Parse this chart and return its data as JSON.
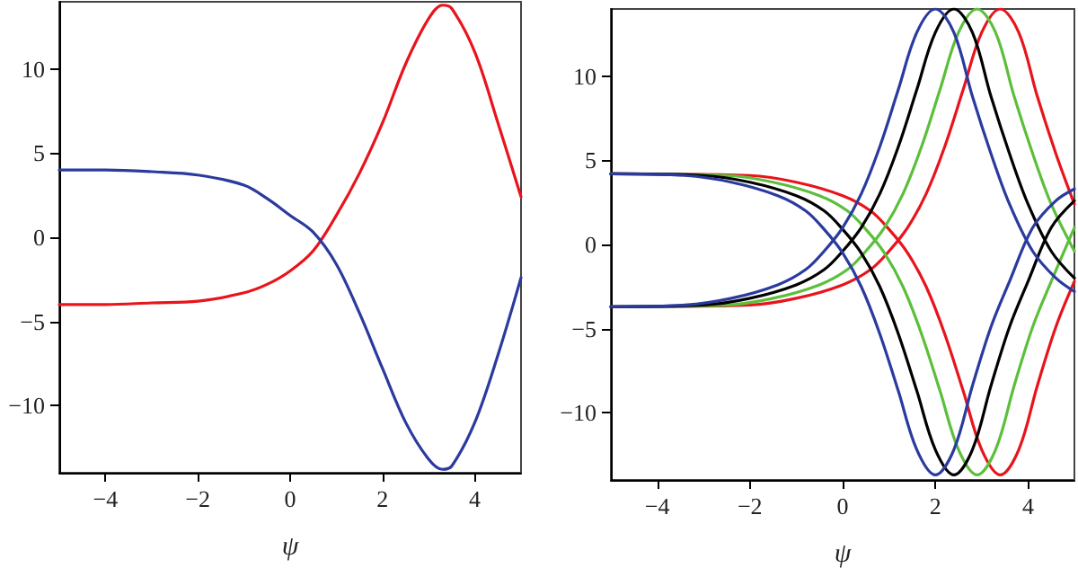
{
  "chart_data": [
    {
      "type": "line",
      "xlabel": "ψ",
      "xlim": [
        -5,
        5
      ],
      "xticks": [
        -4,
        -2,
        0,
        2,
        4
      ],
      "ylim": [
        -14,
        14
      ],
      "yticks": [
        -10,
        -5,
        0,
        5,
        10
      ],
      "grid": false,
      "marker": "none",
      "line_style": "solid",
      "series": [
        {
          "color": "#e8141c",
          "x": [
            -5,
            -4,
            -3,
            -2,
            -1,
            -0.5,
            0,
            0.5,
            1,
            1.5,
            2,
            2.5,
            3,
            3.3,
            3.5,
            4,
            4.5,
            5
          ],
          "values": [
            -4,
            -4,
            -3.9,
            -3.8,
            -3.3,
            -2.8,
            -2.0,
            -0.8,
            1.3,
            3.8,
            6.8,
            10.3,
            13.0,
            13.8,
            13.6,
            11.0,
            6.8,
            2.4
          ]
        },
        {
          "color": "#2a3a9e",
          "x": [
            -5,
            -4,
            -3,
            -2,
            -1,
            -0.5,
            0,
            0.5,
            1,
            1.5,
            2,
            2.5,
            3,
            3.3,
            3.5,
            4,
            4.5,
            5
          ],
          "values": [
            4,
            4,
            3.9,
            3.7,
            3.1,
            2.3,
            1.3,
            0.3,
            -1.6,
            -4.5,
            -7.8,
            -11,
            -13.2,
            -13.8,
            -13.6,
            -11,
            -7,
            -2.4
          ]
        }
      ]
    },
    {
      "type": "line",
      "xlabel": "ψ",
      "xlim": [
        -5,
        5
      ],
      "xticks": [
        -4,
        -2,
        0,
        2,
        4
      ],
      "ylim": [
        -14,
        14
      ],
      "yticks": [
        -10,
        -5,
        0,
        5,
        10
      ],
      "grid": false,
      "marker": "none",
      "line_style": "solid",
      "series": [
        {
          "color": "#e8141c",
          "x": [
            -5,
            -2,
            -1,
            0,
            0.6,
            1,
            1.4,
            1.8,
            2.2,
            2.6,
            3,
            3.4,
            3.8,
            4.2,
            4.6,
            5
          ],
          "values": [
            -3.7,
            -3.6,
            -3.2,
            -2.4,
            -1.5,
            -0.4,
            1.0,
            3.0,
            5.8,
            9.2,
            12.6,
            14,
            12.6,
            8.8,
            5.4,
            2.4
          ]
        },
        {
          "color": "#e8141c",
          "x": [
            -5,
            -2,
            -1,
            0,
            0.6,
            1,
            1.4,
            1.8,
            2.2,
            2.6,
            3,
            3.4,
            3.8,
            4.2,
            4.6,
            5
          ],
          "values": [
            4.2,
            4.1,
            3.7,
            2.9,
            2.0,
            0.9,
            -0.5,
            -2.5,
            -5.3,
            -8.7,
            -12.2,
            -13.7,
            -12.2,
            -8.4,
            -4.9,
            -2.2
          ]
        },
        {
          "color": "#5cbf3c",
          "x": [
            -5,
            -2.5,
            -1.5,
            -0.5,
            0.1,
            0.5,
            0.9,
            1.3,
            1.7,
            2.1,
            2.5,
            2.9,
            3.3,
            3.7,
            4.1,
            4.5,
            5
          ],
          "values": [
            -3.7,
            -3.6,
            -3.2,
            -2.4,
            -1.5,
            -0.4,
            1.0,
            3.0,
            5.8,
            9.2,
            12.6,
            14,
            12.6,
            8.8,
            5.4,
            2.4,
            -0.4
          ]
        },
        {
          "color": "#5cbf3c",
          "x": [
            -5,
            -2.5,
            -1.5,
            -0.5,
            0.1,
            0.5,
            0.9,
            1.3,
            1.7,
            2.1,
            2.5,
            2.9,
            3.3,
            3.7,
            4.1,
            4.5,
            5
          ],
          "values": [
            4.2,
            4.1,
            3.7,
            2.9,
            2.0,
            0.9,
            -0.5,
            -2.5,
            -5.3,
            -8.7,
            -12.2,
            -13.7,
            -12.2,
            -8.4,
            -4.9,
            -2.2,
            1.0
          ]
        },
        {
          "color": "#000000",
          "x": [
            -5,
            -3,
            -2,
            -1,
            -0.4,
            0,
            0.4,
            0.8,
            1.2,
            1.6,
            2,
            2.4,
            2.8,
            3.2,
            3.6,
            4,
            4.5,
            5
          ],
          "values": [
            -3.7,
            -3.6,
            -3.2,
            -2.4,
            -1.5,
            -0.4,
            1.0,
            3.0,
            5.8,
            9.2,
            12.6,
            14,
            12.6,
            8.8,
            5.4,
            2.4,
            -0.4,
            -2.0
          ]
        },
        {
          "color": "#000000",
          "x": [
            -5,
            -3,
            -2,
            -1,
            -0.4,
            0,
            0.4,
            0.8,
            1.2,
            1.6,
            2,
            2.4,
            2.8,
            3.2,
            3.6,
            4,
            4.5,
            5
          ],
          "values": [
            4.2,
            4.1,
            3.7,
            2.9,
            2.0,
            0.9,
            -0.5,
            -2.5,
            -5.3,
            -8.7,
            -12.2,
            -13.7,
            -12.2,
            -8.4,
            -4.9,
            -2.2,
            1.0,
            2.6
          ]
        },
        {
          "color": "#2a3a9e",
          "x": [
            -5,
            -3.4,
            -2.4,
            -1.4,
            -0.8,
            -0.4,
            0,
            0.4,
            0.8,
            1.2,
            1.6,
            2,
            2.4,
            2.8,
            3.2,
            3.6,
            4.1,
            4.6,
            5
          ],
          "values": [
            -3.7,
            -3.6,
            -3.2,
            -2.4,
            -1.5,
            -0.4,
            1.0,
            3.0,
            5.8,
            9.2,
            12.6,
            14,
            12.6,
            8.8,
            5.4,
            2.4,
            -0.4,
            -2.0,
            -2.8
          ]
        },
        {
          "color": "#2a3a9e",
          "x": [
            -5,
            -3.4,
            -2.4,
            -1.4,
            -0.8,
            -0.4,
            0,
            0.4,
            0.8,
            1.2,
            1.6,
            2,
            2.4,
            2.8,
            3.2,
            3.6,
            4.1,
            4.6,
            5
          ],
          "values": [
            4.2,
            4.1,
            3.7,
            2.9,
            2.0,
            0.9,
            -0.5,
            -2.5,
            -5.3,
            -8.7,
            -12.2,
            -13.7,
            -12.2,
            -8.4,
            -4.9,
            -2.2,
            1.0,
            2.6,
            3.3
          ]
        }
      ]
    }
  ]
}
